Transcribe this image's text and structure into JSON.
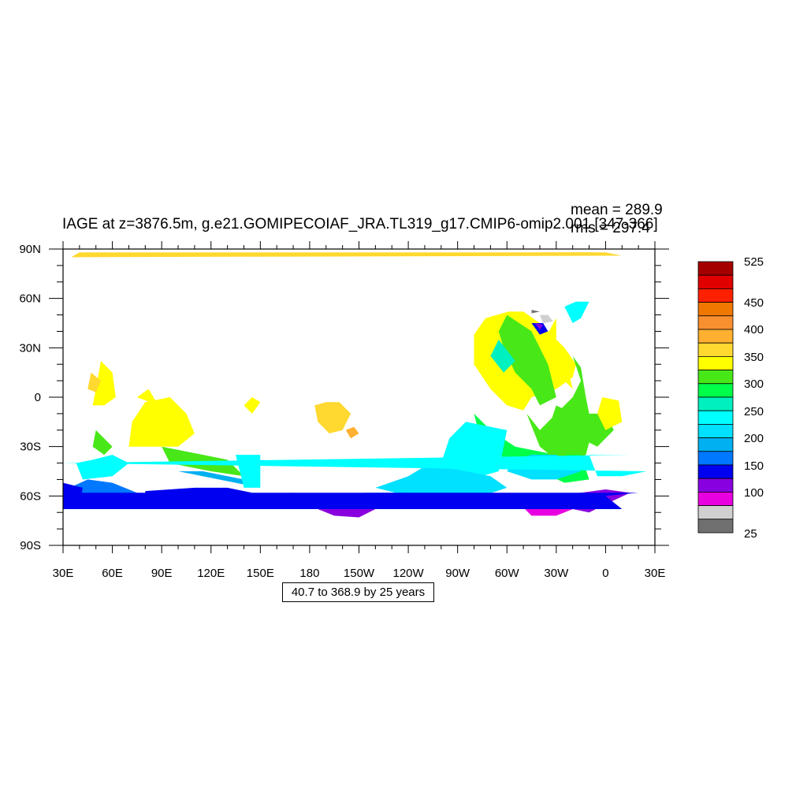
{
  "chart_data": {
    "type": "heatmap",
    "title": "IAGE at z=3876.5m, g.e21.GOMIPECOIAF_JRA.TL319_g17.CMIP6-omip2.001 [347-366]",
    "stats": {
      "mean": "mean = 289.9",
      "rms": "rms = 297.4"
    },
    "x_ticks": [
      "30E",
      "60E",
      "90E",
      "120E",
      "150E",
      "180",
      "150W",
      "120W",
      "90W",
      "60W",
      "30W",
      "0",
      "30E"
    ],
    "y_ticks": [
      "90N",
      "60N",
      "30N",
      "0",
      "30S",
      "60S",
      "90S"
    ],
    "xlim": [
      30,
      390
    ],
    "ylim": [
      -90,
      90
    ],
    "colorbar": {
      "labels": [
        "525",
        "450",
        "400",
        "350",
        "300",
        "250",
        "200",
        "150",
        "100",
        "25"
      ],
      "colors": [
        "#a50000",
        "#e00000",
        "#ff2000",
        "#f07800",
        "#f89030",
        "#ffb030",
        "#ffd830",
        "#ffff00",
        "#48e818",
        "#00ff48",
        "#00f0c0",
        "#00ffff",
        "#00e0ff",
        "#00b0f0",
        "#0078ff",
        "#0000f0",
        "#8800e0",
        "#e800e0",
        "#d0d0d0",
        "#707070"
      ]
    },
    "contour_info": "40.7 to 368.9 by 25 years",
    "regions": [
      {
        "color": "#ffff00",
        "poly": [
          [
            -59,
            52
          ],
          [
            -73,
            48
          ],
          [
            -80,
            38
          ],
          [
            -80,
            20
          ],
          [
            -70,
            5
          ],
          [
            -60,
            -5
          ],
          [
            -50,
            -8
          ],
          [
            -45,
            0
          ],
          [
            -30,
            5
          ],
          [
            -20,
            12
          ],
          [
            -18,
            20
          ],
          [
            -25,
            30
          ],
          [
            -40,
            45
          ],
          [
            -50,
            52
          ]
        ]
      },
      {
        "color": "#48e818",
        "poly": [
          [
            -20,
            25
          ],
          [
            -15,
            18
          ],
          [
            -12,
            0
          ],
          [
            -8,
            -20
          ],
          [
            -12,
            -35
          ],
          [
            -20,
            -40
          ],
          [
            -30,
            -38
          ],
          [
            -40,
            -30
          ],
          [
            -48,
            -10
          ],
          [
            -40,
            -20
          ],
          [
            -30,
            -10
          ],
          [
            -20,
            0
          ],
          [
            -15,
            10
          ]
        ]
      },
      {
        "color": "#00ff48",
        "poly": [
          [
            -30,
            -35
          ],
          [
            -15,
            -35
          ],
          [
            -10,
            -50
          ],
          [
            -25,
            -52
          ],
          [
            -40,
            -45
          ],
          [
            -55,
            -40
          ],
          [
            -75,
            -30
          ],
          [
            -80,
            -10
          ],
          [
            -70,
            -20
          ],
          [
            -55,
            -30
          ]
        ]
      },
      {
        "color": "#00ffff",
        "poly": [
          [
            -60,
            -20
          ],
          [
            -85,
            -15
          ],
          [
            -95,
            -25
          ],
          [
            -100,
            -40
          ],
          [
            -105,
            -50
          ],
          [
            -90,
            -52
          ],
          [
            -65,
            -45
          ]
        ]
      },
      {
        "color": "#00e0ff",
        "poly": [
          [
            -110,
            -42
          ],
          [
            -120,
            -48
          ],
          [
            -140,
            -55
          ],
          [
            -120,
            -60
          ],
          [
            -95,
            -62
          ],
          [
            -75,
            -60
          ],
          [
            -60,
            -55
          ],
          [
            -70,
            -48
          ],
          [
            -90,
            -44
          ]
        ]
      },
      {
        "color": "#00b0f0",
        "poly": [
          [
            -145,
            -58
          ],
          [
            -170,
            -60
          ],
          [
            -175,
            -63
          ],
          [
            -150,
            -66
          ],
          [
            -110,
            -65
          ],
          [
            -110,
            -60
          ],
          [
            -120,
            -58
          ]
        ]
      },
      {
        "color": "#0000f0",
        "poly": [
          [
            170,
            -58
          ],
          [
            175,
            -62
          ],
          [
            160,
            -63
          ],
          [
            150,
            -60
          ]
        ]
      },
      {
        "color": "#8800e0",
        "poly": [
          [
            -175,
            -68
          ],
          [
            -165,
            -72
          ],
          [
            -150,
            -73
          ],
          [
            -140,
            -68
          ],
          [
            -145,
            -63
          ],
          [
            -160,
            -64
          ]
        ]
      },
      {
        "color": "#0000f0",
        "poly": [
          [
            -145,
            -60
          ],
          [
            -135,
            -58
          ],
          [
            -125,
            -62
          ],
          [
            -135,
            -66
          ],
          [
            -145,
            -65
          ]
        ]
      },
      {
        "color": "#ffff00",
        "poly": [
          [
            53,
            22
          ],
          [
            50,
            5
          ],
          [
            48,
            -5
          ],
          [
            55,
            -5
          ],
          [
            62,
            0
          ],
          [
            60,
            15
          ]
        ]
      },
      {
        "color": "#ffd830",
        "poly": [
          [
            -177,
            -5
          ],
          [
            -175,
            -15
          ],
          [
            -168,
            -22
          ],
          [
            -160,
            -20
          ],
          [
            -155,
            -10
          ],
          [
            -162,
            -3
          ],
          [
            -170,
            -3
          ]
        ]
      },
      {
        "color": "#ffb030",
        "poly": [
          [
            -158,
            -20
          ],
          [
            -155,
            -25
          ],
          [
            -150,
            -22
          ],
          [
            -153,
            -18
          ]
        ]
      },
      {
        "color": "#ffff00",
        "poly": [
          [
            70,
            -30
          ],
          [
            72,
            -15
          ],
          [
            80,
            -3
          ],
          [
            95,
            0
          ],
          [
            105,
            -10
          ],
          [
            110,
            -22
          ],
          [
            100,
            -30
          ],
          [
            85,
            -30
          ]
        ]
      },
      {
        "color": "#ffff00",
        "poly": [
          [
            82,
            5
          ],
          [
            75,
            0
          ],
          [
            88,
            -5
          ]
        ]
      },
      {
        "color": "#48e818",
        "poly": [
          [
            50,
            -20
          ],
          [
            48,
            -30
          ],
          [
            55,
            -35
          ],
          [
            60,
            -30
          ]
        ]
      },
      {
        "color": "#00ffff",
        "poly": [
          [
            38,
            -40
          ],
          [
            42,
            -50
          ],
          [
            60,
            -48
          ],
          [
            70,
            -40
          ],
          [
            60,
            -35
          ],
          [
            48,
            -38
          ]
        ]
      },
      {
        "color": "#48e818",
        "poly": [
          [
            90,
            -30
          ],
          [
            95,
            -40
          ],
          [
            120,
            -45
          ],
          [
            140,
            -48
          ],
          [
            130,
            -38
          ],
          [
            110,
            -34
          ]
        ]
      },
      {
        "color": "#0078ff",
        "poly": [
          [
            34,
            -55
          ],
          [
            40,
            -65
          ],
          [
            70,
            -62
          ],
          [
            75,
            -58
          ],
          [
            60,
            -52
          ],
          [
            45,
            -50
          ]
        ]
      },
      {
        "color": "#0000f0",
        "poly": [
          [
            30,
            -52
          ],
          [
            30,
            -65
          ],
          [
            40,
            -66
          ],
          [
            42,
            -55
          ]
        ]
      },
      {
        "color": "#00b0f0",
        "poly": [
          [
            100,
            -45
          ],
          [
            150,
            -55
          ],
          [
            140,
            -50
          ],
          [
            115,
            -45
          ]
        ]
      },
      {
        "color": "#0000f0",
        "poly": [
          [
            80,
            -57
          ],
          [
            80,
            -62
          ],
          [
            140,
            -63
          ],
          [
            145,
            -58
          ],
          [
            130,
            -55
          ],
          [
            110,
            -55
          ],
          [
            95,
            -56
          ]
        ]
      },
      {
        "color": "#00ffff",
        "poly": [
          [
            135,
            -35
          ],
          [
            140,
            -55
          ],
          [
            150,
            -55
          ],
          [
            150,
            -35
          ]
        ]
      },
      {
        "color": "#ffff00",
        "poly": [
          [
            140,
            -5
          ],
          [
            145,
            -10
          ],
          [
            150,
            -3
          ],
          [
            145,
            0
          ]
        ]
      },
      {
        "color": "#48e818",
        "poly": [
          [
            -60,
            50
          ],
          [
            -65,
            40
          ],
          [
            -62,
            30
          ],
          [
            -55,
            15
          ],
          [
            -45,
            5
          ],
          [
            -40,
            -5
          ],
          [
            -30,
            0
          ],
          [
            -35,
            20
          ],
          [
            -45,
            40
          ]
        ]
      },
      {
        "color": "#00f0c0",
        "poly": [
          [
            -65,
            35
          ],
          [
            -70,
            25
          ],
          [
            -62,
            15
          ],
          [
            -55,
            22
          ]
        ]
      },
      {
        "color": "#ffff00",
        "poly": [
          [
            -40,
            30
          ],
          [
            -35,
            20
          ],
          [
            -20,
            5
          ],
          [
            -25,
            25
          ],
          [
            -30,
            35
          ],
          [
            -30,
            48
          ]
        ]
      },
      {
        "color": "#00ffff",
        "poly": [
          [
            -25,
            55
          ],
          [
            -20,
            45
          ],
          [
            -15,
            48
          ],
          [
            -10,
            58
          ],
          [
            -18,
            58
          ]
        ]
      },
      {
        "color": "#48e818",
        "poly": [
          [
            -30,
            -5
          ],
          [
            -35,
            -20
          ],
          [
            -35,
            -35
          ],
          [
            -25,
            -38
          ],
          [
            -20,
            -25
          ],
          [
            -20,
            -10
          ]
        ]
      },
      {
        "color": "#48e818",
        "poly": [
          [
            -10,
            -10
          ],
          [
            -15,
            -25
          ],
          [
            -5,
            -30
          ],
          [
            5,
            -20
          ],
          [
            0,
            -10
          ]
        ]
      },
      {
        "color": "#ffff00",
        "poly": [
          [
            -5,
            -10
          ],
          [
            0,
            -20
          ],
          [
            10,
            -15
          ],
          [
            8,
            -2
          ],
          [
            -2,
            0
          ]
        ]
      },
      {
        "color": "#00e0ff",
        "poly": [
          [
            -55,
            -38
          ],
          [
            -60,
            -45
          ],
          [
            -45,
            -50
          ],
          [
            -30,
            -50
          ],
          [
            -15,
            -45
          ],
          [
            -30,
            -35
          ],
          [
            -45,
            -35
          ]
        ]
      },
      {
        "color": "#00ffff",
        "poly": [
          [
            -10,
            -35
          ],
          [
            -5,
            -48
          ],
          [
            10,
            -48
          ],
          [
            25,
            -45
          ],
          [
            30,
            -40
          ],
          [
            15,
            -35
          ]
        ]
      },
      {
        "color": "#e800e0",
        "poly": [
          [
            -55,
            -62
          ],
          [
            -45,
            -72
          ],
          [
            -30,
            -72
          ],
          [
            -20,
            -68
          ],
          [
            -35,
            -60
          ],
          [
            -45,
            -60
          ]
        ]
      },
      {
        "color": "#8800e0",
        "poly": [
          [
            -35,
            -60
          ],
          [
            -20,
            -68
          ],
          [
            -10,
            -70
          ],
          [
            0,
            -65
          ],
          [
            15,
            -58
          ],
          [
            0,
            -56
          ],
          [
            -15,
            -58
          ]
        ]
      },
      {
        "color": "#0000f0",
        "poly": [
          [
            0,
            -60
          ],
          [
            20,
            -58
          ],
          [
            30,
            -58
          ],
          [
            30,
            -68
          ],
          [
            10,
            -68
          ]
        ]
      },
      {
        "color": "#ffd830",
        "poly": [
          [
            47,
            15
          ],
          [
            45,
            5
          ],
          [
            50,
            3
          ],
          [
            53,
            10
          ]
        ]
      },
      {
        "color": "#ffd830",
        "poly": [
          [
            0,
            88
          ],
          [
            40,
            88
          ],
          [
            35,
            85
          ],
          [
            10,
            86
          ]
        ]
      },
      {
        "color": "#ffd830",
        "poly": [
          [
            -40,
            88
          ],
          [
            -5,
            88
          ],
          [
            -15,
            86
          ],
          [
            -30,
            86
          ]
        ]
      },
      {
        "color": "#d0d0d0",
        "poly": [
          [
            -40,
            50
          ],
          [
            -35,
            50
          ],
          [
            -32,
            46
          ],
          [
            -38,
            45
          ]
        ]
      },
      {
        "color": "#707070",
        "poly": [
          [
            -45,
            53
          ],
          [
            -40,
            52
          ],
          [
            -45,
            51
          ]
        ]
      },
      {
        "color": "#0000f0",
        "poly": [
          [
            -45,
            45
          ],
          [
            -40,
            38
          ],
          [
            -35,
            40
          ],
          [
            -38,
            45
          ]
        ]
      },
      {
        "color": "#8800e0",
        "poly": [
          [
            -43,
            45
          ],
          [
            -38,
            44
          ],
          [
            -40,
            41
          ]
        ]
      }
    ]
  }
}
